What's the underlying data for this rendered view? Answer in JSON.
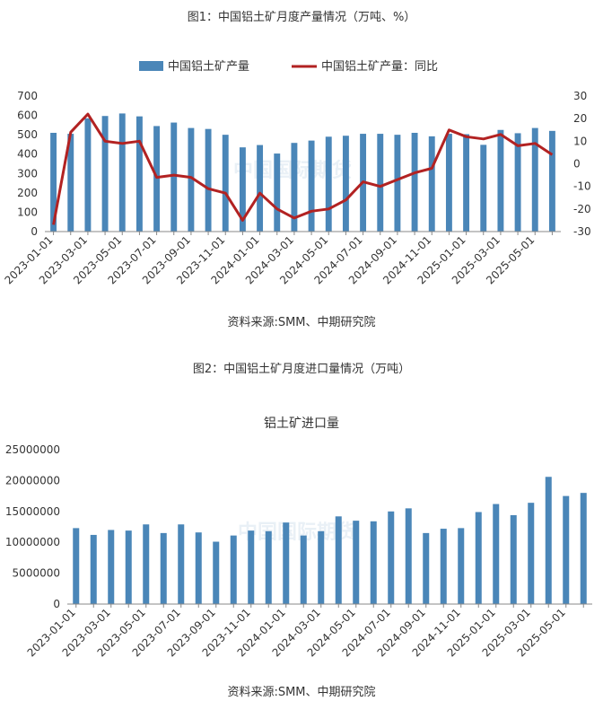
{
  "figure1": {
    "caption": "图1：中国铝土矿月度产量情况（万吨、%）",
    "source": "资料来源:SMM、中期研究院",
    "watermark": "中国国际期货",
    "chart_data": {
      "type": "bar+line",
      "legend": [
        "中国铝土矿产量",
        "中国铝土矿产量：同比"
      ],
      "legend_position": "top-center",
      "x": [
        "2023-01-01",
        "2023-02-01",
        "2023-03-01",
        "2023-04-01",
        "2023-05-01",
        "2023-06-01",
        "2023-07-01",
        "2023-08-01",
        "2023-09-01",
        "2023-10-01",
        "2023-11-01",
        "2023-12-01",
        "2024-01-01",
        "2024-02-01",
        "2024-03-01",
        "2024-04-01",
        "2024-05-01",
        "2024-06-01",
        "2024-07-01",
        "2024-08-01",
        "2024-09-01",
        "2024-10-01",
        "2024-11-01",
        "2024-12-01",
        "2025-01-01",
        "2025-02-01",
        "2025-03-01",
        "2025-04-01",
        "2025-05-01",
        "2025-06-01"
      ],
      "x_tick_labels": [
        "2023-01-01",
        "2023-03-01",
        "2023-05-01",
        "2023-07-01",
        "2023-09-01",
        "2023-11-01",
        "2024-01-01",
        "2024-03-01",
        "2024-05-01",
        "2024-07-01",
        "2024-09-01",
        "2024-11-01",
        "2025-01-01",
        "2025-03-01",
        "2025-05-01"
      ],
      "bar_color": "#4a86b8",
      "line_color": "#b22222",
      "series": [
        {
          "name": "中国铝土矿产量",
          "axis": "left",
          "values": [
            510,
            505,
            585,
            597,
            610,
            595,
            545,
            563,
            535,
            530,
            500,
            435,
            447,
            403,
            458,
            470,
            490,
            495,
            505,
            505,
            500,
            510,
            492,
            505,
            503,
            448,
            525,
            508,
            535,
            520
          ]
        },
        {
          "name": "中国铝土矿产量：同比",
          "axis": "right",
          "values": [
            -27,
            14,
            22,
            10,
            9,
            10,
            -6,
            -5,
            -6,
            -11,
            -13,
            -25,
            -13,
            -20,
            -24,
            -21,
            -20,
            -16,
            -8,
            -10,
            -7,
            -4,
            -2,
            15,
            12,
            11,
            13,
            8,
            9,
            4
          ]
        }
      ],
      "y_left": {
        "min": 0,
        "max": 700,
        "ticks": [
          0,
          100,
          200,
          300,
          400,
          500,
          600,
          700
        ]
      },
      "y_right": {
        "min": -30,
        "max": 30,
        "ticks": [
          -30,
          -20,
          -10,
          0,
          10,
          20,
          30
        ]
      },
      "grid": false
    }
  },
  "figure2": {
    "caption": "图2：中国铝土矿月度进口量情况（万吨）",
    "title": "铝土矿进口量",
    "source": "资料来源:SMM、中期研究院",
    "watermark": "中国国际期货",
    "chart_data": {
      "type": "bar",
      "title": "铝土矿进口量",
      "x": [
        "2023-01-01",
        "2023-02-01",
        "2023-03-01",
        "2023-04-01",
        "2023-05-01",
        "2023-06-01",
        "2023-07-01",
        "2023-08-01",
        "2023-09-01",
        "2023-10-01",
        "2023-11-01",
        "2023-12-01",
        "2024-01-01",
        "2024-02-01",
        "2024-03-01",
        "2024-04-01",
        "2024-05-01",
        "2024-06-01",
        "2024-07-01",
        "2024-08-01",
        "2024-09-01",
        "2024-10-01",
        "2024-11-01",
        "2024-12-01",
        "2025-01-01",
        "2025-02-01",
        "2025-03-01",
        "2025-04-01",
        "2025-05-01",
        "2025-06-01"
      ],
      "x_tick_labels": [
        "2023-01-01",
        "2023-03-01",
        "2023-05-01",
        "2023-07-01",
        "2023-09-01",
        "2023-11-01",
        "2024-01-01",
        "2024-03-01",
        "2024-05-01",
        "2024-07-01",
        "2024-09-01",
        "2024-11-01",
        "2025-01-01",
        "2025-03-01",
        "2025-05-01"
      ],
      "bar_color": "#4a86b8",
      "values": [
        12300000,
        11200000,
        12000000,
        11900000,
        12900000,
        11500000,
        12900000,
        11600000,
        10100000,
        11100000,
        11900000,
        11800000,
        13200000,
        11100000,
        11800000,
        14200000,
        13500000,
        13400000,
        15000000,
        15500000,
        11500000,
        12200000,
        12300000,
        14900000,
        16200000,
        14400000,
        16400000,
        20600000,
        17500000,
        18000000
      ],
      "y": {
        "min": 0,
        "max": 25000000,
        "ticks": [
          0,
          5000000,
          10000000,
          15000000,
          20000000,
          25000000
        ]
      },
      "grid": false
    }
  }
}
